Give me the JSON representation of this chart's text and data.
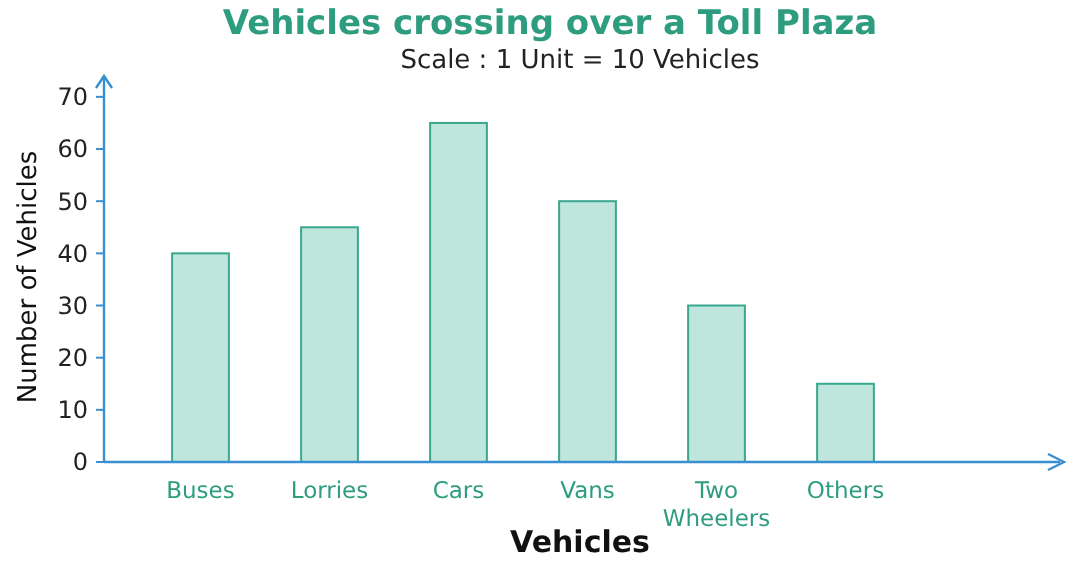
{
  "chart_data": {
    "type": "bar",
    "title": "Vehicles crossing over a Toll Plaza",
    "subtitle": "Scale : 1 Unit = 10 Vehicles",
    "xlabel": "Vehicles",
    "ylabel": "Number of Vehicles",
    "categories": [
      "Buses",
      "Lorries",
      "Cars",
      "Vans",
      "Two Wheelers",
      "Others"
    ],
    "values": [
      40,
      45,
      65,
      50,
      30,
      15
    ],
    "color": "#bfe6dc",
    "ylim": [
      0,
      74
    ],
    "yticks": [
      0,
      10,
      20,
      30,
      40,
      50,
      60,
      70
    ],
    "grid": false
  }
}
